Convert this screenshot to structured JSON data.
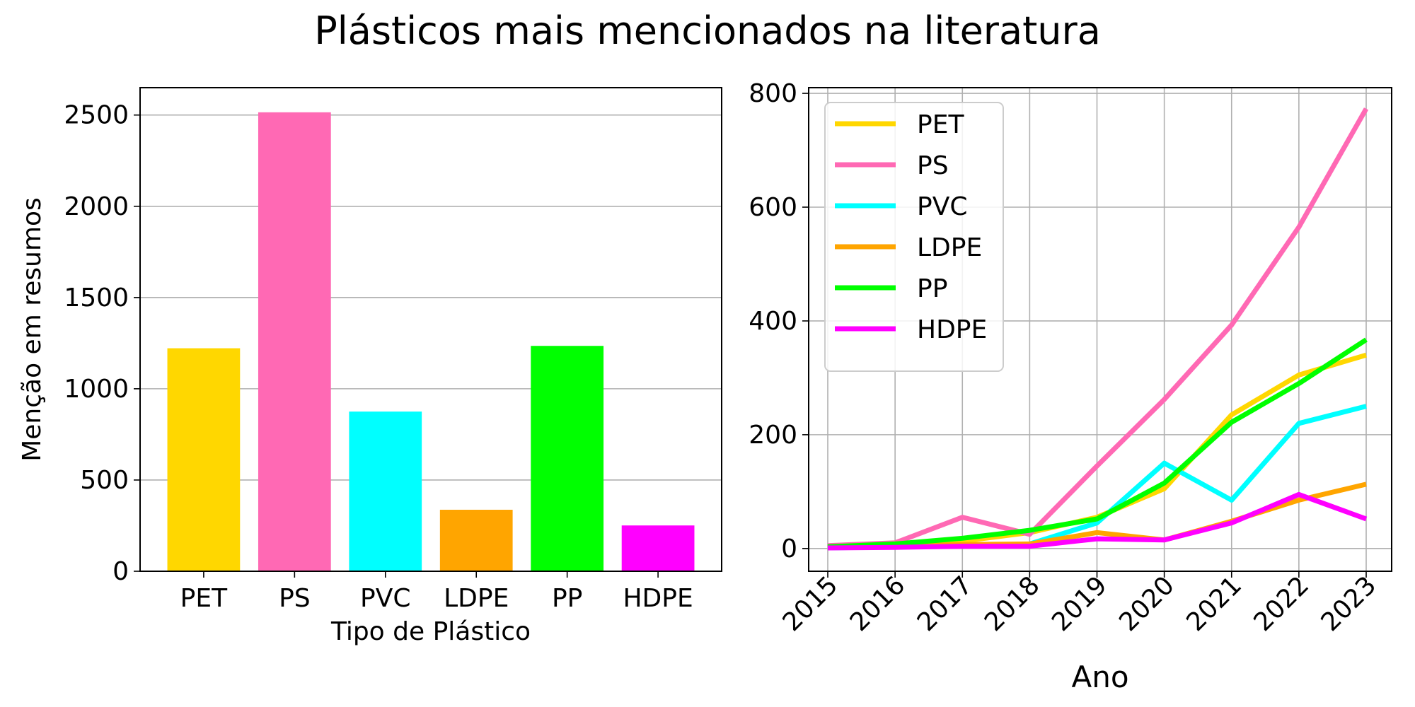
{
  "title": "Plásticos mais mencionados na literatura",
  "chart_data": [
    {
      "type": "bar",
      "categories": [
        "PET",
        "PS",
        "PVC",
        "LDPE",
        "PP",
        "HDPE"
      ],
      "values": [
        1222,
        2515,
        875,
        337,
        1235,
        251
      ],
      "colors": [
        "#FFD700",
        "#FF69B4",
        "#00FFFF",
        "#FFA500",
        "#00FF00",
        "#FF00FF"
      ],
      "xlabel": "Tipo de Plástico",
      "ylabel": "Menção em resumos",
      "ylim": [
        0,
        2650
      ],
      "yticks": [
        0,
        500,
        1000,
        1500,
        2000,
        2500
      ],
      "grid": "y"
    },
    {
      "type": "line",
      "x": [
        "2015",
        "2016",
        "2017",
        "2018",
        "2019",
        "2020",
        "2021",
        "2022",
        "2023"
      ],
      "xlabel": "Ano",
      "ylabel": "",
      "ylim": [
        -40,
        810
      ],
      "yticks": [
        0,
        200,
        400,
        600,
        800
      ],
      "grid": "both",
      "legend": "top-left",
      "series": [
        {
          "name": "PET",
          "color": "#FFD700",
          "values": [
            3,
            8,
            13,
            28,
            55,
            105,
            235,
            305,
            340
          ]
        },
        {
          "name": "PS",
          "color": "#FF69B4",
          "values": [
            5,
            10,
            55,
            25,
            145,
            262,
            393,
            565,
            773
          ]
        },
        {
          "name": "PVC",
          "color": "#00FFFF",
          "values": [
            1,
            3,
            5,
            8,
            45,
            150,
            85,
            220,
            250
          ]
        },
        {
          "name": "LDPE",
          "color": "#FFA500",
          "values": [
            2,
            5,
            7,
            8,
            28,
            15,
            48,
            85,
            113
          ]
        },
        {
          "name": "PP",
          "color": "#00FF00",
          "values": [
            3,
            8,
            18,
            32,
            52,
            115,
            222,
            290,
            367
          ]
        },
        {
          "name": "HDPE",
          "color": "#FF00FF",
          "values": [
            1,
            2,
            4,
            4,
            17,
            15,
            45,
            95,
            52
          ]
        }
      ]
    }
  ]
}
